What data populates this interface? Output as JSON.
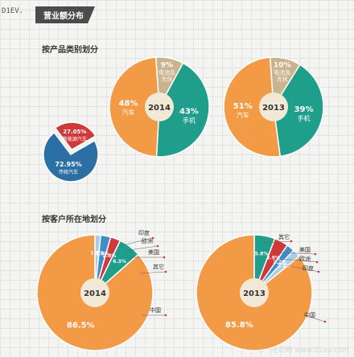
{
  "watermark_top": "D1EV.",
  "header": {
    "title": "营业额分布"
  },
  "section1": {
    "title": "按产品类别划分"
  },
  "section2": {
    "title": "按客户所在地划分"
  },
  "watermark_bottom": "第一电动网 www.d1ev.com",
  "colors": {
    "orange": "#f39a47",
    "teal": "#1f9e8c",
    "tan": "#c9b48f",
    "red": "#d0393a",
    "navy": "#2b6fa5",
    "blue": "#3f8ec9",
    "lightblue": "#a8cde6",
    "center": "#f1e8d6"
  },
  "chart_data": [
    {
      "type": "pie",
      "center_label": "2014",
      "series": [
        {
          "value_label": "48%",
          "name": "汽车",
          "value": 48
        },
        {
          "value_label": "43%",
          "name": "手机",
          "value": 43
        },
        {
          "value_label": "9%",
          "name": "电池及光伏",
          "value": 9
        }
      ]
    },
    {
      "type": "pie",
      "center_label": "2013",
      "series": [
        {
          "value_label": "51%",
          "name": "汽车",
          "value": 51
        },
        {
          "value_label": "39%",
          "name": "手机",
          "value": 39
        },
        {
          "value_label": "10%",
          "name": "电池及光伏",
          "value": 10
        }
      ]
    },
    {
      "type": "pie",
      "series": [
        {
          "value_label": "72.95%",
          "name": "传统汽车",
          "value": 72.95
        },
        {
          "value_label": "27.05%",
          "name": "新能源汽车",
          "value": 27.05
        }
      ]
    },
    {
      "type": "pie",
      "center_label": "2014",
      "series": [
        {
          "name": "中国",
          "value_label": "86.5%",
          "value": 86.5
        },
        {
          "name": "其它",
          "value_label": "6.3%",
          "value": 6.3
        },
        {
          "name": "美国",
          "value_label": "2.8%",
          "value": 2.8
        },
        {
          "name": "欧洲",
          "value_label": "2.8%",
          "value": 2.8
        },
        {
          "name": "印度",
          "value_label": "1.6%",
          "value": 1.6
        }
      ]
    },
    {
      "type": "pie",
      "center_label": "2013",
      "series": [
        {
          "name": "中国",
          "value_label": "85.8%",
          "value": 85.8
        },
        {
          "name": "其它",
          "value_label": "5.8%",
          "value": 5.8
        },
        {
          "name": "美国",
          "value_label": "3.9%",
          "value": 3.9
        },
        {
          "name": "欧洲",
          "value_label": "2.2%",
          "value": 2.2
        },
        {
          "name": "印度",
          "value_label": "2.3%",
          "value": 2.3
        }
      ]
    }
  ]
}
